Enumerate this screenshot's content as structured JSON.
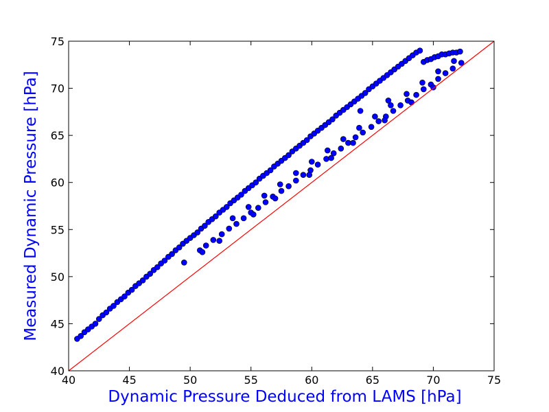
{
  "chart_data": {
    "type": "scatter",
    "title": "",
    "xlabel": "Dynamic Pressure Deduced from LAMS [hPa]",
    "ylabel": "Measured Dynamic Pressure [hPa]",
    "xlim": [
      40,
      75
    ],
    "ylim": [
      40,
      75
    ],
    "xticks": [
      40,
      45,
      50,
      55,
      60,
      65,
      70,
      75
    ],
    "yticks": [
      40,
      45,
      50,
      55,
      60,
      65,
      70,
      75
    ],
    "grid": false,
    "legend": "none",
    "colors": {
      "points": "#0000ff",
      "point_edge": "#000000",
      "reference_line": "#ff0000",
      "axis_label": "#0000ff"
    },
    "reference_line": {
      "description": "1:1",
      "x": [
        40,
        75
      ],
      "y": [
        40,
        75
      ]
    },
    "series": [
      {
        "x": [
          40.7,
          41.0,
          41.3,
          41.6,
          41.9,
          42.2,
          42.5,
          42.8,
          43.1,
          43.4,
          43.7,
          44.0,
          44.3,
          44.6,
          44.9,
          45.2,
          45.5,
          45.8,
          46.1,
          46.4,
          46.7,
          47.0,
          47.3,
          47.6,
          47.9,
          48.2,
          48.5,
          48.8,
          49.1,
          49.4,
          49.7,
          50.0,
          50.3,
          50.6,
          50.9,
          51.2,
          51.5,
          51.8,
          52.1,
          52.4,
          52.7,
          53.0,
          53.3,
          53.6,
          53.9,
          54.2,
          54.5,
          54.8,
          55.1,
          55.4,
          55.7,
          56.0,
          56.3,
          56.6,
          56.9,
          57.2,
          57.5,
          57.8,
          58.1,
          58.4,
          58.7,
          59.0,
          59.3,
          59.6,
          59.9,
          60.2,
          60.5,
          60.8,
          61.1,
          61.4,
          61.7,
          62.0,
          62.3,
          62.6,
          62.9,
          63.2,
          63.5,
          63.8,
          64.1,
          64.4,
          64.7,
          65.0,
          65.3,
          65.6,
          65.9,
          66.2,
          66.5,
          66.8,
          67.1,
          67.4,
          67.7,
          68.0,
          68.3,
          68.6,
          68.9,
          69.2,
          69.5,
          69.8,
          70.1,
          70.4,
          70.7,
          71.0,
          71.3,
          71.6,
          71.9,
          72.2,
          50.8,
          51.3,
          51.9,
          52.6,
          53.2,
          53.8,
          54.4,
          55.0,
          55.6,
          56.2,
          56.8,
          57.5,
          58.1,
          58.7,
          59.3,
          59.9,
          60.5,
          61.2,
          61.8,
          62.4,
          63.0,
          63.6,
          64.2,
          64.9,
          65.5,
          66.1,
          66.7,
          67.3,
          67.9,
          68.6,
          69.2,
          69.8,
          70.4,
          71.0,
          71.6,
          72.3,
          53.5,
          54.8,
          56.1,
          57.4,
          58.7,
          60.0,
          61.3,
          62.6,
          63.9,
          65.2,
          66.5,
          67.8,
          69.1,
          70.4,
          71.7,
          49.5,
          51.0,
          52.4,
          55.2,
          57.0,
          59.8,
          61.6,
          63.4,
          66.0,
          68.2,
          70.0,
          64.0,
          66.3
        ],
        "y": [
          43.4,
          43.7,
          44.1,
          44.4,
          44.7,
          45.0,
          45.5,
          45.9,
          46.2,
          46.6,
          46.9,
          47.3,
          47.6,
          47.9,
          48.3,
          48.6,
          49.0,
          49.3,
          49.6,
          50.0,
          50.3,
          50.7,
          51.0,
          51.4,
          51.7,
          52.1,
          52.4,
          52.8,
          53.1,
          53.5,
          53.8,
          54.1,
          54.4,
          54.7,
          55.1,
          55.4,
          55.8,
          56.1,
          56.4,
          56.8,
          57.1,
          57.4,
          57.8,
          58.1,
          58.4,
          58.7,
          59.1,
          59.4,
          59.7,
          60.0,
          60.4,
          60.7,
          61.0,
          61.3,
          61.7,
          62.0,
          62.3,
          62.6,
          62.9,
          63.3,
          63.6,
          63.9,
          64.2,
          64.5,
          64.9,
          65.2,
          65.5,
          65.8,
          66.1,
          66.4,
          66.7,
          67.1,
          67.4,
          67.7,
          68.0,
          68.3,
          68.6,
          68.9,
          69.2,
          69.5,
          69.9,
          70.2,
          70.5,
          70.8,
          71.1,
          71.4,
          71.7,
          72.0,
          72.3,
          72.6,
          72.9,
          73.2,
          73.5,
          73.8,
          74.0,
          72.8,
          73.0,
          73.1,
          73.3,
          73.4,
          73.6,
          73.6,
          73.7,
          73.8,
          73.8,
          73.9,
          52.8,
          53.3,
          53.9,
          54.5,
          55.1,
          55.6,
          56.2,
          56.8,
          57.3,
          57.9,
          58.5,
          59.1,
          59.6,
          60.2,
          60.8,
          61.3,
          61.9,
          62.5,
          63.1,
          63.6,
          64.2,
          64.8,
          65.3,
          65.9,
          66.5,
          67.0,
          67.6,
          68.2,
          68.7,
          69.3,
          69.9,
          70.4,
          71.0,
          71.6,
          72.1,
          72.7,
          56.2,
          57.4,
          58.6,
          59.8,
          61.0,
          62.2,
          63.4,
          64.6,
          65.8,
          67.0,
          68.2,
          69.4,
          70.6,
          71.8,
          72.9,
          51.5,
          52.6,
          53.8,
          56.6,
          58.3,
          60.8,
          62.6,
          64.2,
          66.6,
          68.5,
          70.1,
          67.6,
          68.7
        ]
      }
    ]
  }
}
